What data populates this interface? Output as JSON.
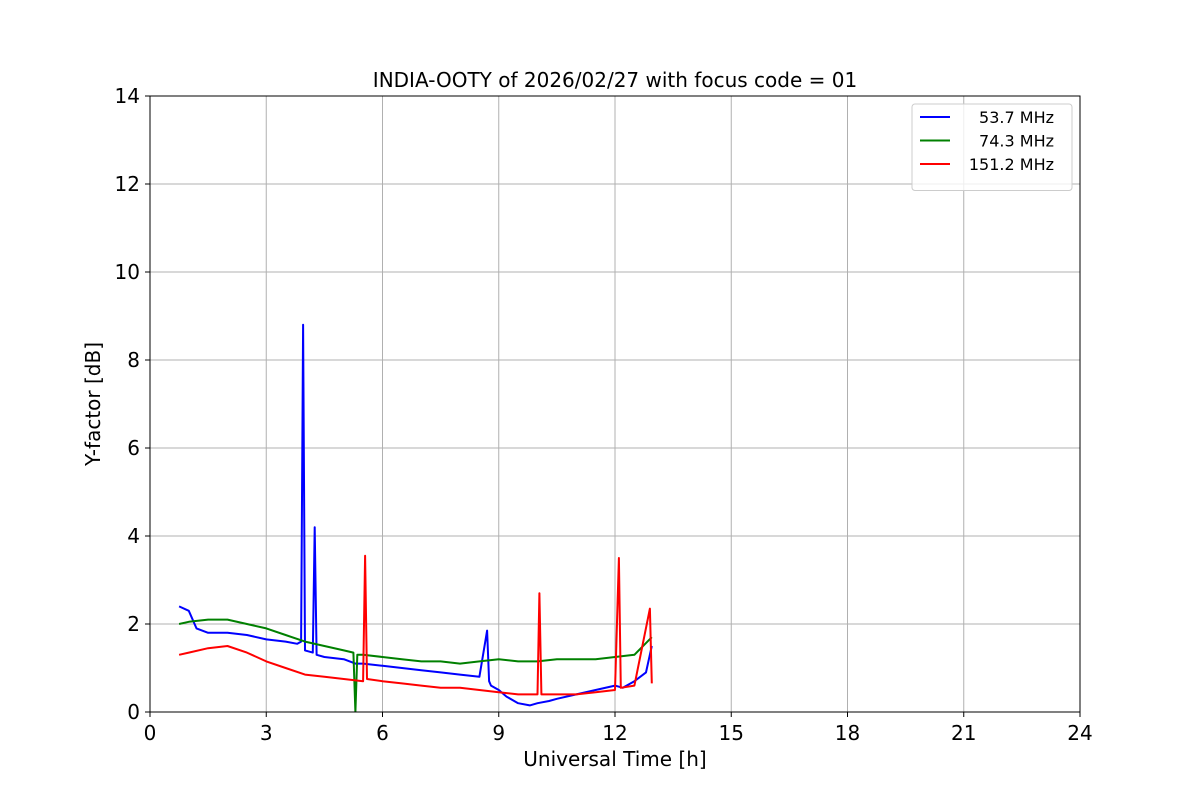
{
  "chart_data": {
    "type": "line",
    "title": "INDIA-OOTY of 2026/02/27 with focus code = 01",
    "xlabel": "Universal Time [h]",
    "ylabel": "Y-factor [dB]",
    "xlim": [
      0,
      24
    ],
    "ylim": [
      0,
      14
    ],
    "xticks": [
      0,
      3,
      6,
      9,
      12,
      15,
      18,
      21,
      24
    ],
    "yticks": [
      0,
      2,
      4,
      6,
      8,
      10,
      12,
      14
    ],
    "grid": true,
    "legend_position": "top-right",
    "series": [
      {
        "name": "53.7 MHz",
        "color": "#0000ff",
        "x": [
          0.75,
          1.0,
          1.2,
          1.5,
          2.0,
          2.5,
          3.0,
          3.5,
          3.8,
          3.9,
          3.95,
          4.0,
          4.2,
          4.25,
          4.3,
          4.5,
          5.0,
          5.3,
          5.5,
          6.0,
          6.5,
          7.0,
          7.5,
          8.0,
          8.5,
          8.7,
          8.75,
          8.8,
          9.0,
          9.2,
          9.5,
          9.8,
          10.0,
          10.3,
          10.5,
          11.0,
          11.5,
          12.0,
          12.2,
          12.5,
          12.8,
          12.95
        ],
        "y": [
          2.4,
          2.3,
          1.9,
          1.8,
          1.8,
          1.75,
          1.65,
          1.6,
          1.55,
          1.6,
          8.8,
          1.4,
          1.35,
          4.2,
          1.3,
          1.25,
          1.2,
          1.1,
          1.1,
          1.05,
          1.0,
          0.95,
          0.9,
          0.85,
          0.8,
          1.85,
          0.7,
          0.6,
          0.5,
          0.35,
          0.2,
          0.15,
          0.2,
          0.25,
          0.3,
          0.4,
          0.5,
          0.6,
          0.55,
          0.7,
          0.9,
          1.5
        ]
      },
      {
        "name": "74.3 MHz",
        "color": "#008000",
        "x": [
          0.75,
          1.0,
          1.5,
          2.0,
          2.5,
          3.0,
          3.5,
          4.0,
          4.5,
          5.0,
          5.25,
          5.3,
          5.35,
          5.5,
          6.0,
          6.5,
          7.0,
          7.5,
          8.0,
          8.5,
          9.0,
          9.5,
          10.0,
          10.5,
          11.0,
          11.5,
          12.0,
          12.5,
          12.95
        ],
        "y": [
          2.0,
          2.05,
          2.1,
          2.1,
          2.0,
          1.9,
          1.75,
          1.6,
          1.5,
          1.4,
          1.35,
          0.0,
          1.3,
          1.3,
          1.25,
          1.2,
          1.15,
          1.15,
          1.1,
          1.15,
          1.2,
          1.15,
          1.15,
          1.2,
          1.2,
          1.2,
          1.25,
          1.3,
          1.7
        ]
      },
      {
        "name": "151.2 MHz",
        "color": "#ff0000",
        "x": [
          0.75,
          1.0,
          1.5,
          2.0,
          2.5,
          3.0,
          3.5,
          4.0,
          4.5,
          5.0,
          5.5,
          5.55,
          5.6,
          6.0,
          6.5,
          7.0,
          7.5,
          8.0,
          8.5,
          9.0,
          9.5,
          10.0,
          10.05,
          10.1,
          10.5,
          11.0,
          11.5,
          12.0,
          12.1,
          12.15,
          12.5,
          12.9,
          12.95
        ],
        "y": [
          1.3,
          1.35,
          1.45,
          1.5,
          1.35,
          1.15,
          1.0,
          0.85,
          0.8,
          0.75,
          0.7,
          3.55,
          0.75,
          0.7,
          0.65,
          0.6,
          0.55,
          0.55,
          0.5,
          0.45,
          0.4,
          0.4,
          2.7,
          0.4,
          0.4,
          0.4,
          0.45,
          0.5,
          3.5,
          0.55,
          0.6,
          2.35,
          0.65
        ]
      }
    ]
  }
}
